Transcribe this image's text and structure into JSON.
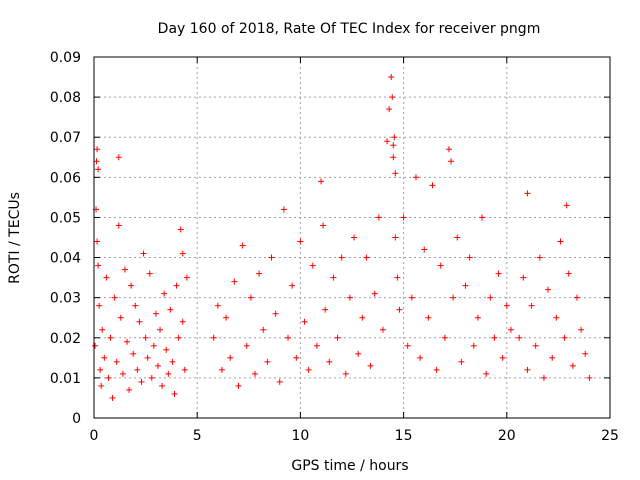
{
  "chart_data": {
    "type": "scatter",
    "title": "Day 160 of 2018, Rate Of TEC Index for receiver pngm",
    "xlabel": "GPS time / hours",
    "ylabel": "ROTI / TECUs",
    "xlim": [
      0,
      25
    ],
    "ylim": [
      0,
      0.09
    ],
    "xticks": [
      0,
      5,
      10,
      15,
      20,
      25
    ],
    "xtick_labels": [
      "0",
      "5",
      "10",
      "15",
      "20",
      "25"
    ],
    "yticks": [
      0,
      0.01,
      0.02,
      0.03,
      0.04,
      0.05,
      0.06,
      0.07,
      0.08,
      0.09
    ],
    "ytick_labels": [
      "0",
      "0.01",
      "0.02",
      "0.03",
      "0.04",
      "0.05",
      "0.06",
      "0.07",
      "0.08",
      "0.09"
    ],
    "grid": true,
    "marker": "+",
    "series_color": "#ff0000",
    "series": [
      {
        "name": "ROTI",
        "x": [
          0.05,
          0.1,
          0.15,
          0.2,
          0.25,
          0.3,
          0.35,
          0.4,
          0.5,
          0.6,
          0.7,
          0.8,
          0.9,
          1.0,
          1.1,
          1.2,
          1.3,
          1.4,
          1.5,
          1.6,
          1.7,
          1.8,
          1.9,
          2.0,
          2.1,
          2.2,
          2.3,
          2.4,
          2.5,
          2.6,
          2.7,
          2.8,
          2.9,
          3.0,
          3.1,
          3.2,
          3.3,
          3.4,
          3.5,
          3.6,
          3.7,
          3.8,
          3.9,
          4.0,
          4.1,
          4.2,
          4.3,
          4.4,
          4.5,
          0.12,
          0.15,
          0.2,
          1.2,
          4.3,
          5.8,
          6.0,
          6.2,
          6.4,
          6.6,
          6.8,
          7.0,
          7.2,
          7.4,
          7.6,
          7.8,
          8.0,
          8.2,
          8.4,
          8.6,
          8.8,
          9.0,
          9.2,
          9.4,
          9.6,
          9.8,
          10.0,
          10.2,
          10.4,
          10.6,
          10.8,
          11.0,
          11.2,
          11.4,
          11.6,
          11.8,
          12.0,
          12.2,
          12.4,
          12.6,
          12.8,
          13.0,
          13.2,
          13.4,
          13.6,
          13.8,
          14.0,
          14.2,
          14.3,
          14.4,
          14.5,
          14.6,
          14.7,
          14.8,
          15.0,
          15.2,
          15.4,
          15.6,
          15.8,
          16.0,
          16.2,
          16.4,
          16.6,
          16.8,
          17.0,
          17.2,
          17.4,
          17.6,
          17.8,
          18.0,
          18.2,
          18.4,
          18.6,
          18.8,
          19.0,
          19.2,
          19.4,
          19.6,
          19.8,
          20.0,
          20.2,
          14.45,
          14.5,
          14.55,
          14.6,
          17.3,
          11.1,
          20.6,
          20.8,
          21.0,
          21.2,
          21.4,
          21.6,
          21.8,
          22.0,
          22.2,
          22.4,
          22.6,
          22.8,
          23.0,
          23.2,
          23.4,
          23.6,
          23.8,
          24.0,
          21.0,
          22.9
        ],
        "y": [
          0.018,
          0.052,
          0.067,
          0.062,
          0.028,
          0.012,
          0.008,
          0.022,
          0.015,
          0.035,
          0.01,
          0.02,
          0.005,
          0.03,
          0.014,
          0.048,
          0.025,
          0.011,
          0.037,
          0.019,
          0.007,
          0.033,
          0.016,
          0.028,
          0.012,
          0.024,
          0.009,
          0.041,
          0.02,
          0.015,
          0.036,
          0.01,
          0.018,
          0.026,
          0.013,
          0.022,
          0.008,
          0.031,
          0.017,
          0.011,
          0.027,
          0.014,
          0.006,
          0.033,
          0.02,
          0.047,
          0.024,
          0.012,
          0.035,
          0.064,
          0.044,
          0.038,
          0.065,
          0.041,
          0.02,
          0.028,
          0.012,
          0.025,
          0.015,
          0.034,
          0.008,
          0.043,
          0.018,
          0.03,
          0.011,
          0.036,
          0.022,
          0.014,
          0.04,
          0.026,
          0.009,
          0.052,
          0.02,
          0.033,
          0.015,
          0.044,
          0.024,
          0.012,
          0.038,
          0.018,
          0.059,
          0.027,
          0.014,
          0.035,
          0.02,
          0.04,
          0.011,
          0.03,
          0.045,
          0.016,
          0.025,
          0.04,
          0.013,
          0.031,
          0.05,
          0.022,
          0.069,
          0.077,
          0.085,
          0.068,
          0.045,
          0.035,
          0.027,
          0.05,
          0.018,
          0.03,
          0.06,
          0.015,
          0.042,
          0.025,
          0.058,
          0.012,
          0.038,
          0.02,
          0.067,
          0.03,
          0.045,
          0.014,
          0.033,
          0.04,
          0.018,
          0.025,
          0.05,
          0.011,
          0.03,
          0.02,
          0.036,
          0.015,
          0.028,
          0.022,
          0.08,
          0.065,
          0.07,
          0.061,
          0.064,
          0.048,
          0.02,
          0.035,
          0.012,
          0.028,
          0.018,
          0.04,
          0.01,
          0.032,
          0.015,
          0.025,
          0.044,
          0.02,
          0.036,
          0.013,
          0.03,
          0.022,
          0.016,
          0.01,
          0.056,
          0.053
        ]
      }
    ]
  }
}
